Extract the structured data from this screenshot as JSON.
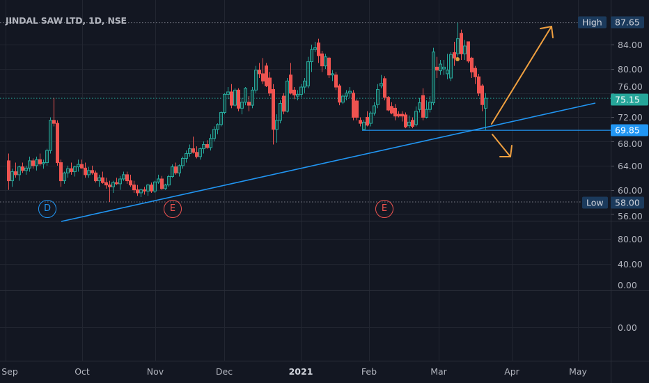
{
  "header": {
    "title": "JINDAL SAW LTD, 1D, NSE"
  },
  "colors": {
    "background": "#131722",
    "grid": "#222631",
    "up": "#26a69a",
    "down": "#ef5350",
    "trendline": "#2196f3",
    "arrow": "#f0a040",
    "last_price": "#26a69a",
    "support": "#2196f3",
    "dividend": "#2196f3",
    "earnings": "#ef5350"
  },
  "chart_data": {
    "type": "candlestick",
    "title": "JINDAL SAW LTD, 1D, NSE",
    "ylim": [
      54,
      89
    ],
    "y_ticks": [
      "84.00",
      "80.00",
      "76.00",
      "72.00",
      "68.00",
      "64.00",
      "60.00",
      "56.00"
    ],
    "x_ticks": [
      {
        "label": "Sep",
        "bold": false
      },
      {
        "label": "Oct",
        "bold": false
      },
      {
        "label": "Nov",
        "bold": false
      },
      {
        "label": "Dec",
        "bold": false
      },
      {
        "label": "2021",
        "bold": true
      },
      {
        "label": "Feb",
        "bold": false
      },
      {
        "label": "Mar",
        "bold": false
      },
      {
        "label": "Apr",
        "bold": false
      },
      {
        "label": "May",
        "bold": false
      }
    ],
    "ohlc": [
      [
        64.8,
        66,
        60,
        61.5
      ],
      [
        61.5,
        63.5,
        60.5,
        63
      ],
      [
        63,
        64.5,
        62,
        62.5
      ],
      [
        62.5,
        64,
        61.5,
        63.8
      ],
      [
        63.8,
        64.5,
        62.8,
        63.2
      ],
      [
        63.2,
        64,
        62.5,
        63.6
      ],
      [
        63.6,
        65.5,
        63,
        64.8
      ],
      [
        64.8,
        65.2,
        63.5,
        64
      ],
      [
        64,
        65.5,
        63.2,
        65
      ],
      [
        65,
        66,
        64,
        64.3
      ],
      [
        64.3,
        65,
        63.5,
        64.5
      ],
      [
        64.5,
        66.8,
        64,
        66.5
      ],
      [
        66.5,
        72,
        66,
        71.5
      ],
      [
        71.5,
        75.2,
        70.5,
        71
      ],
      [
        71,
        71.5,
        64,
        64.5
      ],
      [
        64.5,
        65,
        60.5,
        61.5
      ],
      [
        61.5,
        63,
        61,
        62.8
      ],
      [
        62.8,
        64,
        62,
        63.5
      ],
      [
        63.5,
        64.5,
        62.5,
        63
      ],
      [
        63,
        64,
        62.2,
        63.8
      ],
      [
        63.8,
        65,
        63,
        64.2
      ],
      [
        64.2,
        65,
        63.5,
        63.6
      ],
      [
        63.6,
        64.5,
        62,
        62.5
      ],
      [
        62.5,
        63.8,
        62,
        63.2
      ],
      [
        63.2,
        64,
        62.5,
        62.8
      ],
      [
        62.8,
        63.2,
        61.2,
        61.5
      ],
      [
        61.5,
        62.5,
        60.5,
        62
      ],
      [
        62,
        63,
        61,
        61.2
      ],
      [
        61.2,
        62,
        60.2,
        60.8
      ],
      [
        60.8,
        61.5,
        58,
        60.5
      ],
      [
        60.5,
        61.5,
        59.5,
        61.2
      ],
      [
        61.2,
        62,
        60.8,
        61
      ],
      [
        61,
        62.3,
        60,
        61.8
      ],
      [
        61.8,
        63,
        61.5,
        62.5
      ],
      [
        62.5,
        63,
        61,
        61.5
      ],
      [
        61.5,
        62.5,
        60.5,
        60.8
      ],
      [
        60.8,
        61.5,
        59.5,
        60
      ],
      [
        60,
        60.8,
        59,
        59.5
      ],
      [
        59.5,
        60.2,
        58.8,
        60
      ],
      [
        60,
        60.5,
        59.2,
        59.8
      ],
      [
        59.8,
        61,
        59,
        60.8
      ],
      [
        60.8,
        61.2,
        59.5,
        59.8
      ],
      [
        59.8,
        61.5,
        59.5,
        61.3
      ],
      [
        61.3,
        62.5,
        61,
        61.8
      ],
      [
        61.8,
        62.3,
        60,
        60.2
      ],
      [
        60.2,
        61,
        60,
        60.8
      ],
      [
        60.8,
        62.5,
        60.5,
        62.2
      ],
      [
        62.2,
        64.2,
        62,
        63.8
      ],
      [
        63.8,
        64.5,
        62.5,
        62.8
      ],
      [
        62.8,
        64.2,
        62.2,
        64
      ],
      [
        64,
        65.5,
        63.5,
        65.2
      ],
      [
        65.2,
        66.5,
        64.5,
        66
      ],
      [
        66,
        67.5,
        65.5,
        66.8
      ],
      [
        66.8,
        68.8,
        66,
        66.2
      ],
      [
        66.2,
        67.2,
        65.2,
        65.5
      ],
      [
        65.5,
        67,
        65,
        66.8
      ],
      [
        66.8,
        68,
        66,
        67.5
      ],
      [
        67.5,
        68.2,
        66.8,
        67
      ],
      [
        67,
        69.2,
        66.5,
        68.5
      ],
      [
        68.5,
        70.5,
        68,
        70
      ],
      [
        70,
        71,
        69.2,
        70.8
      ],
      [
        70.8,
        73,
        70.5,
        72.8
      ],
      [
        72.8,
        76,
        72.5,
        75.8
      ],
      [
        75.8,
        77,
        75,
        76.2
      ],
      [
        76.2,
        77.5,
        73.5,
        74
      ],
      [
        74,
        76.8,
        73.8,
        76.5
      ],
      [
        76.5,
        76.8,
        73,
        73.5
      ],
      [
        73.5,
        75.2,
        72.5,
        74.5
      ],
      [
        74.5,
        77,
        74,
        76.8
      ],
      [
        74.5,
        75.5,
        73,
        74
      ],
      [
        74,
        77,
        73.5,
        76.5
      ],
      [
        76.5,
        80.5,
        76,
        79.8
      ],
      [
        79.8,
        81,
        78.5,
        79.2
      ],
      [
        79.2,
        81.8,
        77.5,
        78
      ],
      [
        80.5,
        81,
        77,
        77.2
      ],
      [
        78.5,
        79.5,
        75.5,
        76
      ],
      [
        76.6,
        77.5,
        67.5,
        70
      ],
      [
        70,
        72.5,
        67.8,
        71.5
      ],
      [
        71.5,
        74.8,
        71,
        74.3
      ],
      [
        75.5,
        76,
        72.5,
        73
      ],
      [
        73,
        78.5,
        72.8,
        78
      ],
      [
        79,
        81,
        75.8,
        76
      ],
      [
        76.5,
        77,
        75,
        75.7
      ],
      [
        75.5,
        76.5,
        74.8,
        75.8
      ],
      [
        75.8,
        77.5,
        75.3,
        77
      ],
      [
        77,
        78.5,
        76,
        78
      ],
      [
        77.2,
        82,
        76.8,
        81.2
      ],
      [
        81.2,
        84,
        79.5,
        83.2
      ],
      [
        83.2,
        84.5,
        82.8,
        83.5
      ],
      [
        84.3,
        85,
        81,
        82.2
      ],
      [
        82.5,
        83,
        79.5,
        80.5
      ],
      [
        80.5,
        82.5,
        80,
        82
      ],
      [
        81.8,
        82,
        78.5,
        79
      ],
      [
        79,
        79.8,
        78,
        79.2
      ],
      [
        79,
        79.5,
        76.5,
        77
      ],
      [
        77.2,
        77.5,
        74,
        74.5
      ],
      [
        74.5,
        75.8,
        74.2,
        75.5
      ],
      [
        75.5,
        76.5,
        74.8,
        76
      ],
      [
        76,
        77,
        75.2,
        76.3
      ],
      [
        76,
        76.5,
        71.5,
        72
      ],
      [
        74.7,
        75,
        71.5,
        72
      ],
      [
        71.5,
        72,
        70.5,
        71
      ],
      [
        70,
        71.6,
        69.85,
        71.2
      ],
      [
        72,
        73,
        70.5,
        70.7
      ],
      [
        71,
        73,
        70.5,
        72.7
      ],
      [
        72.7,
        74.5,
        72.3,
        73.9
      ],
      [
        74.1,
        77.5,
        73.5,
        76.6
      ],
      [
        77.2,
        79,
        76.8,
        77.6
      ],
      [
        78.4,
        78.8,
        74.8,
        75.3
      ],
      [
        75.3,
        75.5,
        73,
        73.2
      ],
      [
        73.8,
        74.5,
        72.5,
        72.7
      ],
      [
        73.5,
        74.2,
        71.5,
        72.2
      ],
      [
        72.5,
        73,
        72,
        72.2
      ],
      [
        72.5,
        73,
        71.3,
        72.2
      ],
      [
        72.4,
        72.8,
        70.2,
        70.4
      ],
      [
        70.6,
        72.3,
        70.2,
        71.2
      ],
      [
        71.5,
        72,
        70.2,
        70.5
      ],
      [
        70.8,
        73.8,
        70.5,
        73
      ],
      [
        73.3,
        75.2,
        72.8,
        74.4
      ],
      [
        75.6,
        76.8,
        71.5,
        72
      ],
      [
        72,
        74.8,
        71.8,
        73.3
      ],
      [
        73.3,
        75.5,
        72.8,
        74.5
      ],
      [
        74.4,
        83.5,
        74,
        82.8
      ],
      [
        80.3,
        82,
        78.5,
        79.8
      ],
      [
        79.7,
        81.5,
        79,
        80.8
      ],
      [
        80,
        81.5,
        79,
        80.3
      ],
      [
        79.2,
        82.5,
        78.3,
        79.8
      ],
      [
        78.5,
        82.8,
        78,
        82.4
      ],
      [
        82.7,
        84.5,
        80.5,
        81.8
      ],
      [
        82.5,
        87.65,
        82,
        85
      ],
      [
        85.9,
        86.5,
        81.5,
        82.5
      ],
      [
        82.5,
        84.8,
        81.5,
        83.8
      ],
      [
        84.5,
        84.5,
        81,
        81.3
      ],
      [
        81.8,
        82,
        78.5,
        79.5
      ],
      [
        80.1,
        80.5,
        77.5,
        78.7
      ],
      [
        78.7,
        79.2,
        75.5,
        76
      ],
      [
        77.2,
        77.5,
        73,
        74.1
      ],
      [
        73.5,
        76,
        69.85,
        75.15
      ]
    ],
    "last_price": "75.15",
    "support_level": "69.85",
    "high": {
      "label": "High",
      "value": "87.65"
    },
    "low": {
      "label": "Low",
      "value": "58.00"
    },
    "events": [
      {
        "type": "dividend",
        "letter": "D"
      },
      {
        "type": "earnings",
        "letter": "E"
      },
      {
        "type": "earnings",
        "letter": "E"
      }
    ],
    "indicator_pane_1_ticks": [
      "80.00",
      "40.00",
      "0.00"
    ],
    "indicator_pane_2_ticks": [
      "0.00"
    ]
  }
}
